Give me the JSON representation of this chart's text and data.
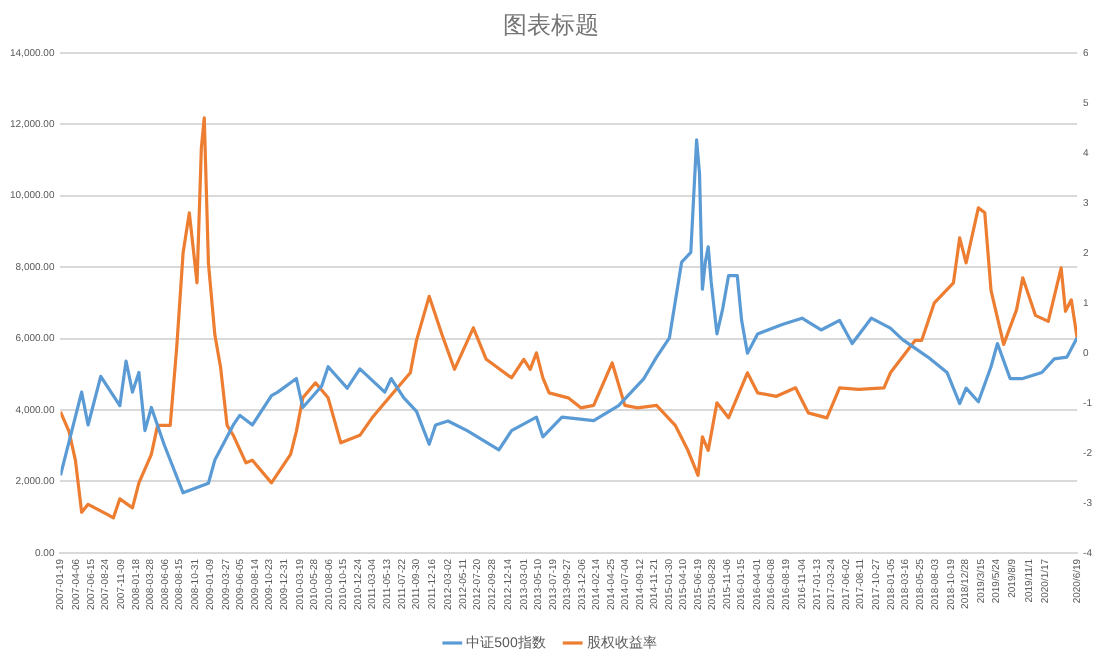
{
  "chart_data": {
    "type": "line",
    "title": "图表标题",
    "xlim": [
      "2007-01-19",
      "2020-06-19"
    ],
    "xticks": [
      {
        "value": "2007-01-19",
        "label": "2007-01-19"
      },
      {
        "value": "2007-04-06",
        "label": "2007-04-06"
      },
      {
        "value": "2007-06-15",
        "label": "2007-06-15"
      },
      {
        "value": "2007-08-24",
        "label": "2007-08-24"
      },
      {
        "value": "2007-11-09",
        "label": "2007-11-09"
      },
      {
        "value": "2008-01-18",
        "label": "2008-01-18"
      },
      {
        "value": "2008-03-28",
        "label": "2008-03-28"
      },
      {
        "value": "2008-06-06",
        "label": "2008-06-06"
      },
      {
        "value": "2008-08-15",
        "label": "2008-08-15"
      },
      {
        "value": "2008-10-31",
        "label": "2008-10-31"
      },
      {
        "value": "2009-01-09",
        "label": "2009-01-09"
      },
      {
        "value": "2009-03-27",
        "label": "2009-03-27"
      },
      {
        "value": "2009-06-05",
        "label": "2009-06-05"
      },
      {
        "value": "2009-08-14",
        "label": "2009-08-14"
      },
      {
        "value": "2009-10-23",
        "label": "2009-10-23"
      },
      {
        "value": "2009-12-31",
        "label": "2009-12-31"
      },
      {
        "value": "2010-03-19",
        "label": "2010-03-19"
      },
      {
        "value": "2010-05-28",
        "label": "2010-05-28"
      },
      {
        "value": "2010-08-06",
        "label": "2010-08-06"
      },
      {
        "value": "2010-10-15",
        "label": "2010-10-15"
      },
      {
        "value": "2010-12-24",
        "label": "2010-12-24"
      },
      {
        "value": "2011-03-04",
        "label": "2011-03-04"
      },
      {
        "value": "2011-05-13",
        "label": "2011-05-13"
      },
      {
        "value": "2011-07-22",
        "label": "2011-07-22"
      },
      {
        "value": "2011-09-30",
        "label": "2011-09-30"
      },
      {
        "value": "2011-12-16",
        "label": "2011-12-16"
      },
      {
        "value": "2012-03-02",
        "label": "2012-03-02"
      },
      {
        "value": "2012-05-11",
        "label": "2012-05-11"
      },
      {
        "value": "2012-07-20",
        "label": "2012-07-20"
      },
      {
        "value": "2012-09-28",
        "label": "2012-09-28"
      },
      {
        "value": "2012-12-14",
        "label": "2012-12-14"
      },
      {
        "value": "2013-03-01",
        "label": "2013-03-01"
      },
      {
        "value": "2013-05-10",
        "label": "2013-05-10"
      },
      {
        "value": "2013-07-19",
        "label": "2013-07-19"
      },
      {
        "value": "2013-09-27",
        "label": "2013-09-27"
      },
      {
        "value": "2013-12-06",
        "label": "2013-12-06"
      },
      {
        "value": "2014-02-14",
        "label": "2014-02-14"
      },
      {
        "value": "2014-04-25",
        "label": "2014-04-25"
      },
      {
        "value": "2014-07-04",
        "label": "2014-07-04"
      },
      {
        "value": "2014-09-12",
        "label": "2014-09-12"
      },
      {
        "value": "2014-11-21",
        "label": "2014-11-21"
      },
      {
        "value": "2015-01-30",
        "label": "2015-01-30"
      },
      {
        "value": "2015-04-10",
        "label": "2015-04-10"
      },
      {
        "value": "2015-06-19",
        "label": "2015-06-19"
      },
      {
        "value": "2015-08-28",
        "label": "2015-08-28"
      },
      {
        "value": "2015-11-06",
        "label": "2015-11-06"
      },
      {
        "value": "2016-01-15",
        "label": "2016-01-15"
      },
      {
        "value": "2016-04-01",
        "label": "2016-04-01"
      },
      {
        "value": "2016-06-08",
        "label": "2016-06-08"
      },
      {
        "value": "2016-08-19",
        "label": "2016-08-19"
      },
      {
        "value": "2016-11-04",
        "label": "2016-11-04"
      },
      {
        "value": "2017-01-13",
        "label": "2017-01-13"
      },
      {
        "value": "2017-03-24",
        "label": "2017-03-24"
      },
      {
        "value": "2017-06-02",
        "label": "2017-06-02"
      },
      {
        "value": "2017-08-11",
        "label": "2017-08-11"
      },
      {
        "value": "2017-10-27",
        "label": "2017-10-27"
      },
      {
        "value": "2018-01-05",
        "label": "2018-01-05"
      },
      {
        "value": "2018-03-16",
        "label": "2018-03-16"
      },
      {
        "value": "2018-05-25",
        "label": "2018-05-25"
      },
      {
        "value": "2018-08-03",
        "label": "2018-08-03"
      },
      {
        "value": "2018-10-19",
        "label": "2018-10-19"
      },
      {
        "value": "2018-12-28",
        "label": "2018/12/28"
      },
      {
        "value": "2019-03-15",
        "label": "2019/3/15"
      },
      {
        "value": "2019-05-24",
        "label": "2019/5/24"
      },
      {
        "value": "2019-08-09",
        "label": "2019/8/9"
      },
      {
        "value": "2019-11-01",
        "label": "2019/11/1"
      },
      {
        "value": "2020-01-17",
        "label": "2020/1/17"
      },
      {
        "value": "2020-06-19",
        "label": "2020/6/19"
      }
    ],
    "ylim": [
      0,
      14000
    ],
    "yticks": [
      {
        "value": 0,
        "label": "0.00"
      },
      {
        "value": 2000,
        "label": "2,000.00"
      },
      {
        "value": 4000,
        "label": "4,000.00"
      },
      {
        "value": 6000,
        "label": "6,000.00"
      },
      {
        "value": 8000,
        "label": "8,000.00"
      },
      {
        "value": 10000,
        "label": "10,000.00"
      },
      {
        "value": 12000,
        "label": "12,000.00"
      },
      {
        "value": 14000,
        "label": "14,000.00"
      }
    ],
    "y2lim": [
      -4,
      6
    ],
    "y2ticks": [
      -4,
      -3,
      -2,
      -1,
      0,
      1,
      2,
      3,
      4,
      5,
      6
    ],
    "grid": "y",
    "legend": "bottom",
    "marker": "none",
    "line_style": "solid",
    "series": [
      {
        "name": "中证500指数",
        "color": "#5b9bd5",
        "x": [
          "2007-01-19",
          "2007-05",
          "2007-06",
          "2007-08",
          "2007-11",
          "2007-12",
          "2008-01",
          "2008-02",
          "2008-03",
          "2008-04",
          "2008-06",
          "2008-09",
          "2009-01",
          "2009-02",
          "2009-05",
          "2009-06",
          "2009-08",
          "2009-11",
          "2009-12",
          "2010-03",
          "2010-04",
          "2010-07",
          "2010-08",
          "2010-11",
          "2011-01",
          "2011-05",
          "2011-06",
          "2011-08",
          "2011-10",
          "2011-12",
          "2012-01",
          "2012-03",
          "2012-06",
          "2012-11",
          "2013-01",
          "2013-05",
          "2013-06",
          "2013-09",
          "2014-02",
          "2014-06",
          "2014-08",
          "2014-10",
          "2014-12",
          "2015-02",
          "2015-04",
          "2015-05-15",
          "2015-06-12",
          "2015-06-26",
          "2015-07-10",
          "2015-07-24",
          "2015-08-07",
          "2015-08-21",
          "2015-09-18",
          "2015-10-16",
          "2015-11-13",
          "2015-12-25",
          "2016-01-15",
          "2016-02-12",
          "2016-04",
          "2016-08",
          "2016-11",
          "2017-02",
          "2017-05",
          "2017-07",
          "2017-10",
          "2018-01",
          "2018-03",
          "2018-07",
          "2018-10",
          "2018-12",
          "2019-01",
          "2019-03",
          "2019-05",
          "2019-06",
          "2019-08",
          "2019-10",
          "2020-01",
          "2020-03",
          "2020-05",
          "2020-06-19"
        ],
        "values": [
          2170,
          4500,
          3580,
          4940,
          4120,
          5370,
          4500,
          5050,
          3420,
          4070,
          3040,
          1680,
          1950,
          2600,
          3580,
          3850,
          3580,
          4400,
          4500,
          4880,
          4070,
          4670,
          5210,
          4610,
          5150,
          4500,
          4880,
          4340,
          3960,
          3040,
          3580,
          3690,
          3420,
          2880,
          3420,
          3800,
          3250,
          3800,
          3700,
          4120,
          4500,
          4880,
          5480,
          6020,
          8140,
          8410,
          11560,
          10630,
          7380,
          8140,
          8570,
          7600,
          6130,
          6840,
          7760,
          7760,
          6510,
          5590,
          6130,
          6400,
          6570,
          6240,
          6510,
          5860,
          6570,
          6290,
          5970,
          5480,
          5050,
          4180,
          4610,
          4230,
          5210,
          5860,
          4880,
          4880,
          5050,
          5430,
          5480,
          6020
        ]
      },
      {
        "name": "股权收益率",
        "color": "#ed7d31",
        "axis": "y2",
        "x": [
          "2007-01-19",
          "2007-03",
          "2007-04",
          "2007-05",
          "2007-06",
          "2007-09",
          "2007-10",
          "2007-11",
          "2008-01",
          "2008-02",
          "2008-04",
          "2008-05",
          "2008-07",
          "2008-08",
          "2008-09",
          "2008-10",
          "2008-11-07",
          "2008-11-28",
          "2008-12-12",
          "2009-01",
          "2009-02",
          "2009-03",
          "2009-04",
          "2009-05",
          "2009-07",
          "2009-08",
          "2009-11",
          "2010-02",
          "2010-03",
          "2010-04",
          "2010-06",
          "2010-08",
          "2010-10",
          "2011-01",
          "2011-03",
          "2011-05",
          "2011-09",
          "2011-10",
          "2011-12",
          "2012-02",
          "2012-04",
          "2012-07",
          "2012-09",
          "2013-01",
          "2013-03",
          "2013-04",
          "2013-05",
          "2013-06",
          "2013-07",
          "2013-10",
          "2013-12",
          "2014-02",
          "2014-05",
          "2014-07",
          "2014-09",
          "2014-12",
          "2015-03",
          "2015-05",
          "2015-06-19",
          "2015-07-10",
          "2015-08-07",
          "2015-09-18",
          "2015-11-13",
          "2016-02-12",
          "2016-04",
          "2016-07",
          "2016-10",
          "2016-12",
          "2017-03",
          "2017-05",
          "2017-08",
          "2017-12",
          "2018-01",
          "2018-05",
          "2018-06",
          "2018-08",
          "2018-11",
          "2018-12",
          "2019-01",
          "2019-03",
          "2019-04",
          "2019-05",
          "2019-07",
          "2019-09",
          "2019-10",
          "2019-12",
          "2020-02",
          "2020-04-03",
          "2020-04-24",
          "2020-05-22",
          "2020-06-19"
        ],
        "values": [
          -1.18,
          -1.57,
          -2.15,
          -3.19,
          -3.03,
          -3.23,
          -3.3,
          -2.92,
          -3.1,
          -2.6,
          -2.03,
          -1.45,
          -1.45,
          0.1,
          2.0,
          2.8,
          1.4,
          4.1,
          4.7,
          1.8,
          0.36,
          -0.3,
          -1.45,
          -1.65,
          -2.2,
          -2.15,
          -2.6,
          -2.03,
          -1.57,
          -0.9,
          -0.6,
          -0.9,
          -1.8,
          -1.65,
          -1.3,
          -1.0,
          -0.4,
          0.25,
          1.13,
          0.36,
          -0.33,
          0.5,
          -0.13,
          -0.5,
          -0.13,
          -0.33,
          0.0,
          -0.5,
          -0.8,
          -0.9,
          -1.1,
          -1.05,
          -0.2,
          -1.05,
          -1.1,
          -1.05,
          -1.45,
          -1.95,
          -2.45,
          -1.68,
          -1.95,
          -1.0,
          -1.3,
          -0.4,
          -0.8,
          -0.87,
          -0.7,
          -1.2,
          -1.3,
          -0.7,
          -0.73,
          -0.7,
          -0.4,
          0.25,
          0.25,
          1.0,
          1.4,
          2.3,
          1.8,
          2.9,
          2.8,
          1.25,
          0.17,
          0.86,
          1.5,
          0.75,
          0.63,
          1.7,
          0.83,
          1.06,
          0.3
        ]
      }
    ]
  }
}
